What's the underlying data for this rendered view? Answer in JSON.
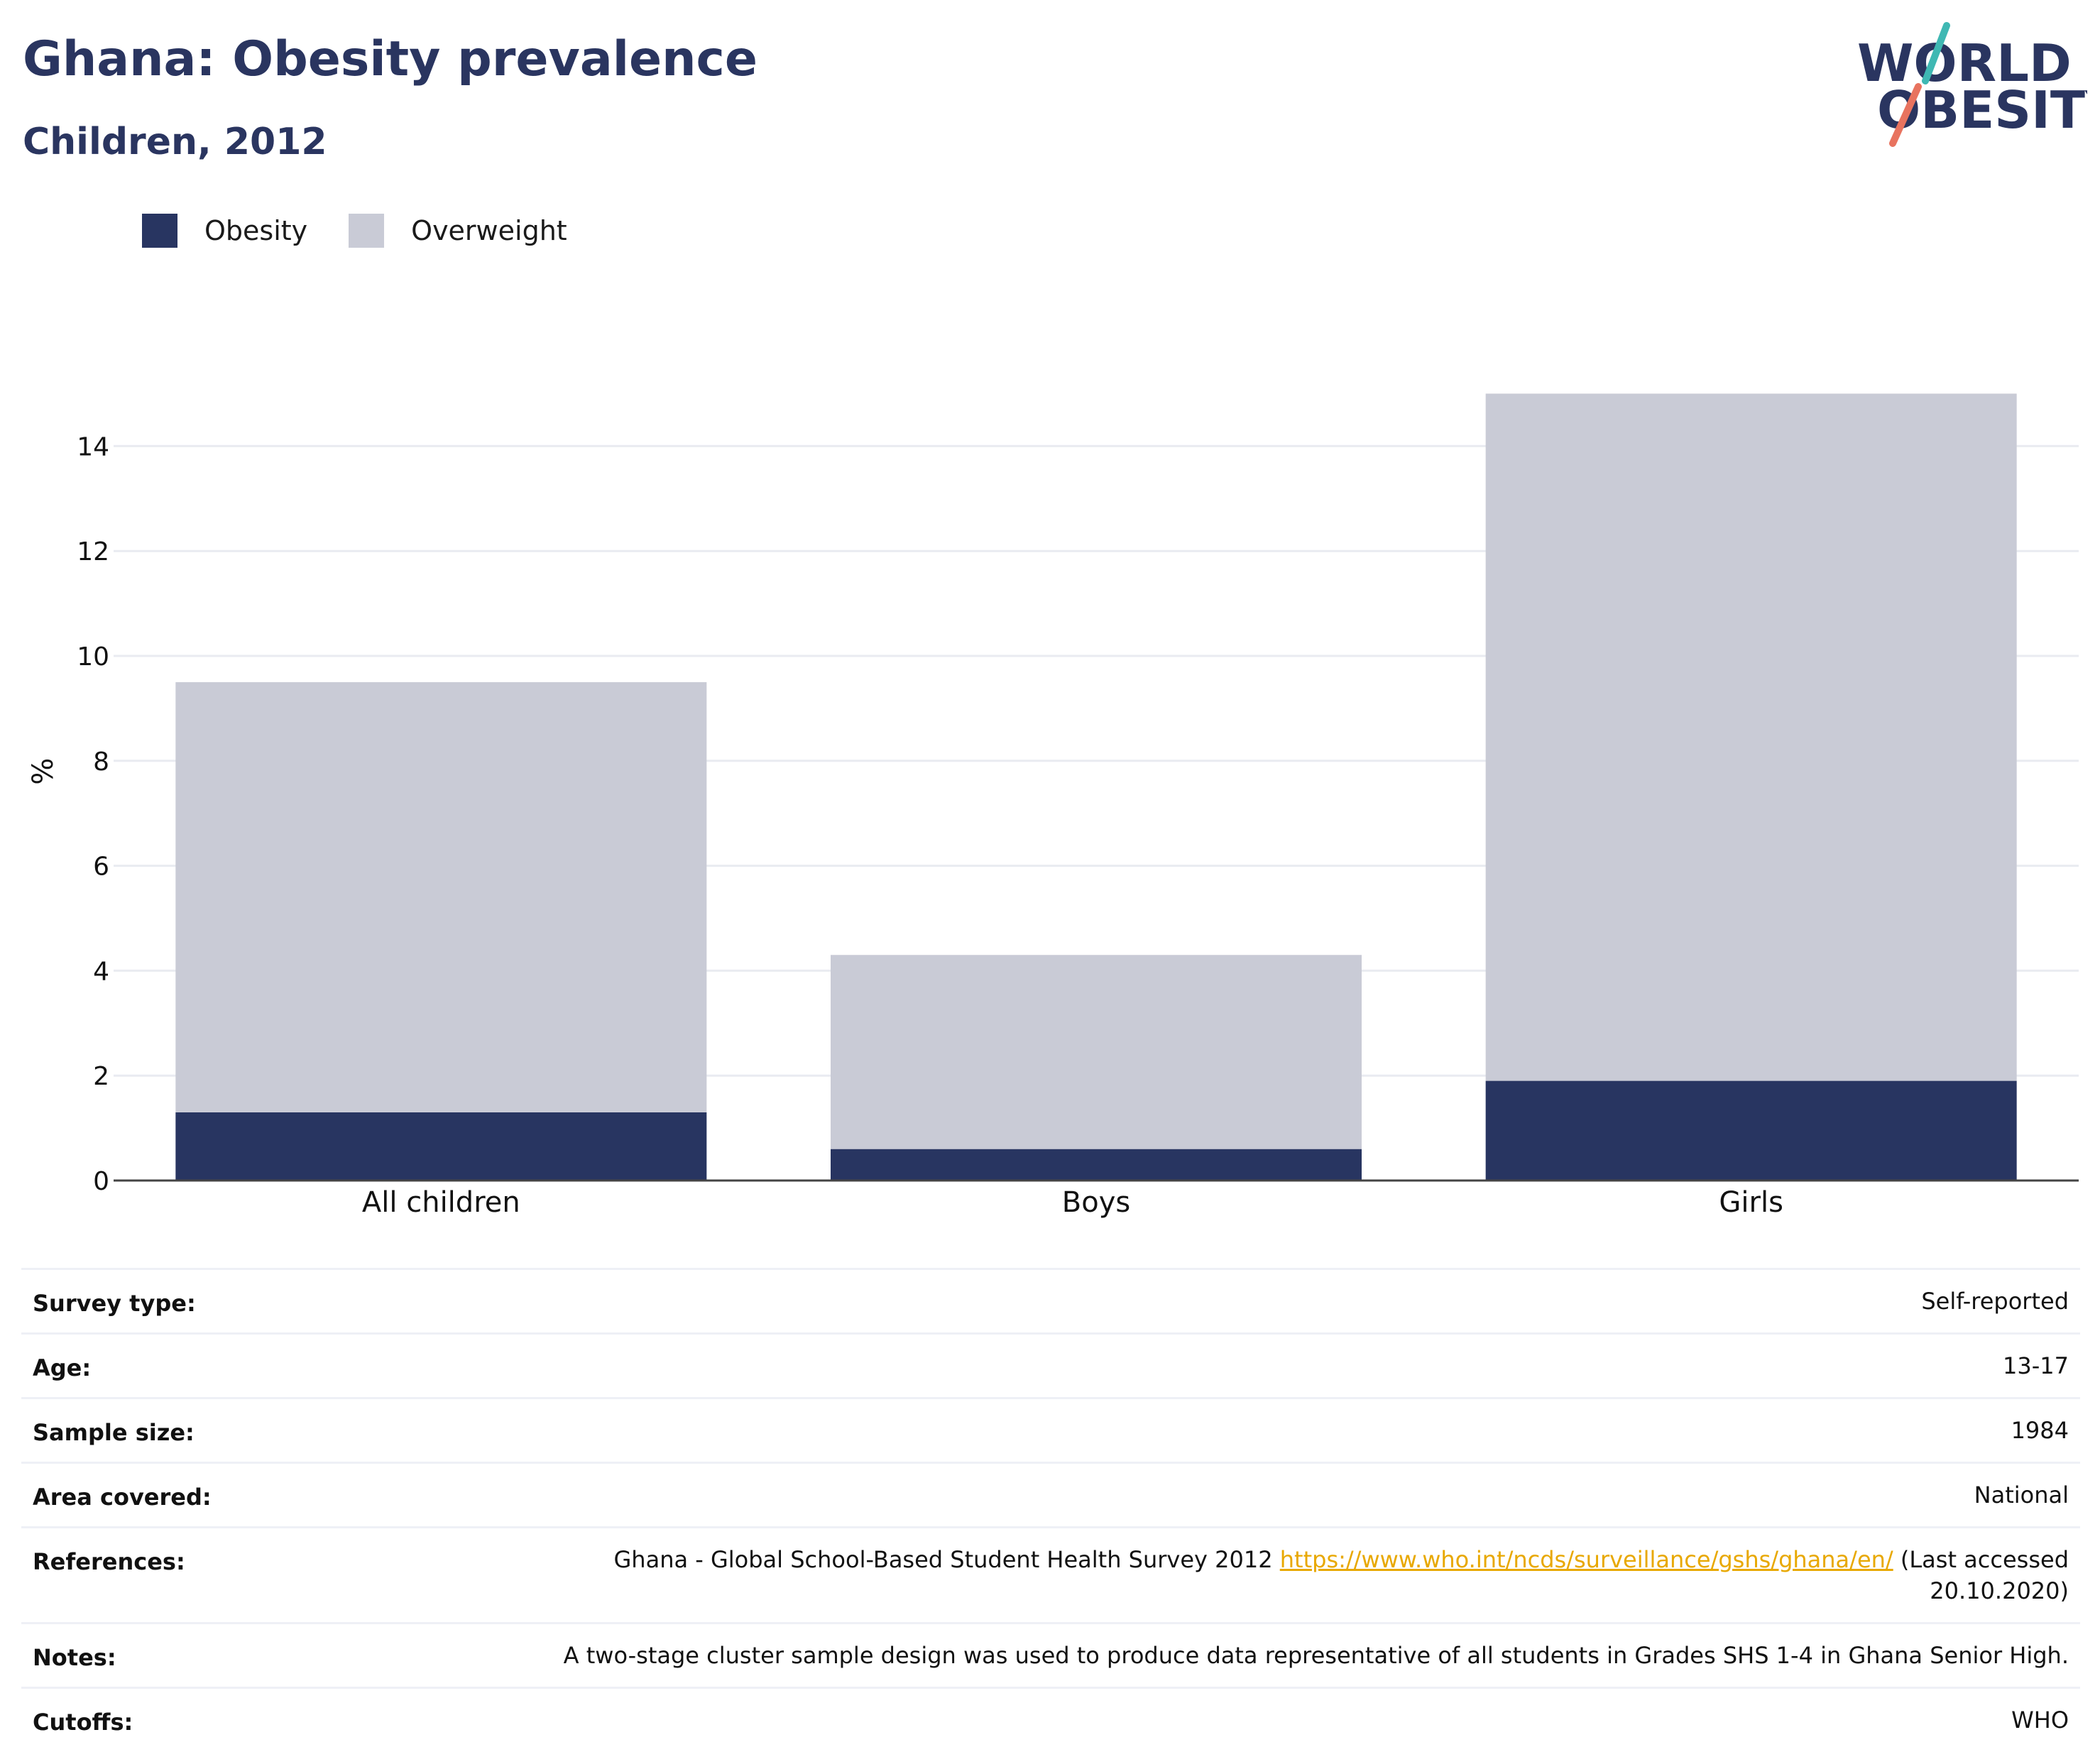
{
  "header": {
    "title": "Ghana: Obesity prevalence",
    "subtitle": "Children, 2012",
    "logo_line1": "WORLD",
    "logo_line2": "OBESITY"
  },
  "legend": [
    {
      "label": "Obesity",
      "color": "#283561"
    },
    {
      "label": "Overweight",
      "color": "#c9cbd6"
    }
  ],
  "chart_data": {
    "type": "bar",
    "stacked": true,
    "categories": [
      "All children",
      "Boys",
      "Girls"
    ],
    "series": [
      {
        "name": "Obesity",
        "color": "#283561",
        "values": [
          1.3,
          0.6,
          1.9
        ]
      },
      {
        "name": "Overweight",
        "color": "#c9cbd6",
        "values": [
          8.2,
          3.7,
          13.1
        ]
      }
    ],
    "title": "",
    "xlabel": "",
    "ylabel": "%",
    "ylim": [
      0,
      15.5
    ],
    "yticks": [
      0,
      2,
      4,
      6,
      8,
      10,
      12,
      14
    ],
    "grid": true,
    "legend_position": "top-left"
  },
  "info": [
    {
      "label": "Survey type:",
      "value": "Self-reported"
    },
    {
      "label": "Age:",
      "value": "13-17"
    },
    {
      "label": "Sample size:",
      "value": "1984"
    },
    {
      "label": "Area covered:",
      "value": "National"
    },
    {
      "label": "References:",
      "value_before": "Ghana - Global School-Based Student Health Survey 2012 ",
      "link": "https://www.who.int/ncds/surveillance/gshs/ghana/en/",
      "value_after": " (Last accessed 20.10.2020)"
    },
    {
      "label": "Notes:",
      "value": "A two-stage cluster sample design was used to produce data representative of all students in Grades SHS 1-4 in Ghana Senior High."
    },
    {
      "label": "Cutoffs:",
      "value": "WHO"
    }
  ]
}
